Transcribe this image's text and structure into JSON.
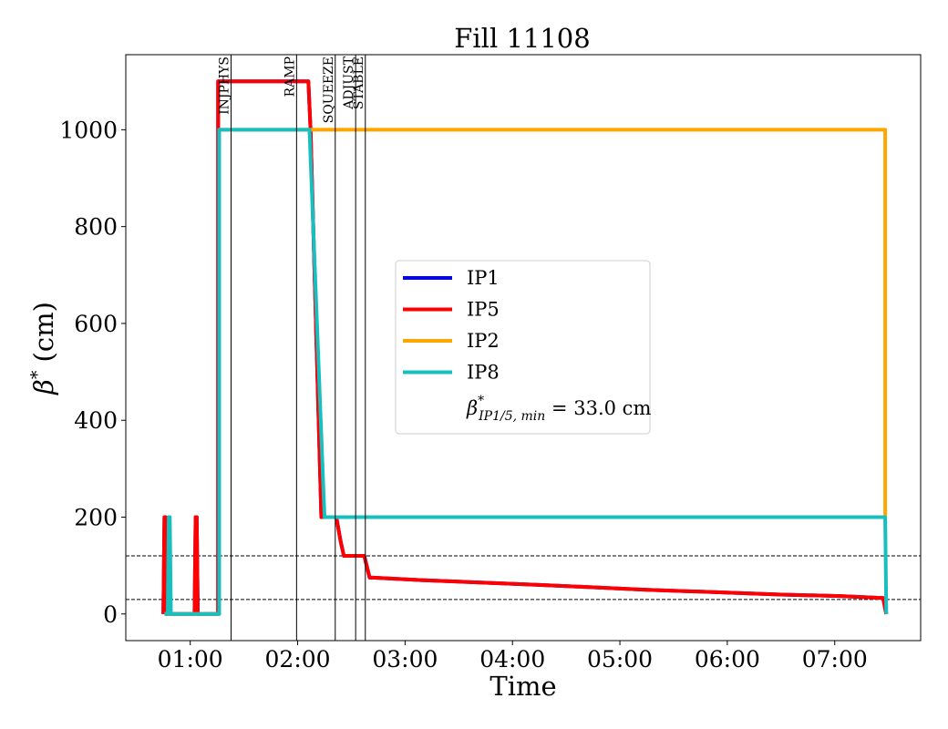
{
  "chart_data": {
    "type": "line",
    "title": "Fill 11108",
    "xlabel": "Time",
    "ylabel_symbol": "β",
    "ylabel_sup": "*",
    "ylabel_unit": " (cm)",
    "x_unit": "hours",
    "xlim": [
      0.4,
      7.8
    ],
    "ylim": [
      -55,
      1155
    ],
    "x_ticks": [
      {
        "value": 1,
        "label": "01:00"
      },
      {
        "value": 2,
        "label": "02:00"
      },
      {
        "value": 3,
        "label": "03:00"
      },
      {
        "value": 4,
        "label": "04:00"
      },
      {
        "value": 5,
        "label": "05:00"
      },
      {
        "value": 6,
        "label": "06:00"
      },
      {
        "value": 7,
        "label": "07:00"
      }
    ],
    "y_ticks": [
      0,
      200,
      400,
      600,
      800,
      1000
    ],
    "grid": false,
    "legend_position": "center",
    "reference_lines": [
      {
        "y": 120,
        "style": "dashed"
      },
      {
        "y": 30,
        "style": "dashed"
      }
    ],
    "phases": [
      {
        "label": "INJPHYS",
        "x": 1.38
      },
      {
        "label": "RAMP",
        "x": 1.99
      },
      {
        "label": "SQUEEZE",
        "x": 2.35
      },
      {
        "label": "ADJUST",
        "x": 2.54
      },
      {
        "label": "STABLE",
        "x": 2.63
      }
    ],
    "series": [
      {
        "name": "IP1",
        "color": "#0000ff",
        "x": [
          0.75,
          0.76,
          0.77,
          0.78,
          1.04,
          1.05,
          1.06,
          1.07,
          1.26,
          1.26,
          2.1,
          2.12,
          2.22,
          2.23,
          2.36,
          2.4,
          2.43,
          2.62,
          2.67,
          2.7,
          3.15,
          3.7,
          4.25,
          4.75,
          5.25,
          5.9,
          6.5,
          7.05,
          7.45,
          7.48
        ],
        "y": [
          0,
          200,
          200,
          0,
          0,
          200,
          200,
          0,
          0,
          1100,
          1100,
          1000,
          200,
          200,
          200,
          150,
          120,
          120,
          75,
          75,
          70,
          65,
          60,
          55,
          50,
          45,
          40,
          37,
          33,
          0
        ]
      },
      {
        "name": "IP5",
        "color": "#ff0000",
        "x": [
          0.75,
          0.76,
          0.77,
          0.78,
          1.04,
          1.05,
          1.06,
          1.07,
          1.26,
          1.26,
          2.1,
          2.12,
          2.22,
          2.23,
          2.36,
          2.4,
          2.43,
          2.62,
          2.67,
          2.7,
          3.15,
          3.7,
          4.25,
          4.75,
          5.25,
          5.9,
          6.5,
          7.05,
          7.45,
          7.48
        ],
        "y": [
          0,
          200,
          200,
          0,
          0,
          200,
          200,
          0,
          0,
          1100,
          1100,
          1000,
          200,
          200,
          200,
          150,
          120,
          120,
          75,
          75,
          70,
          65,
          60,
          55,
          50,
          45,
          40,
          37,
          33,
          0
        ]
      },
      {
        "name": "IP2",
        "color": "#ffa500",
        "x": [
          0.76,
          1.27,
          1.27,
          7.47,
          7.47
        ],
        "y": [
          0,
          0,
          1000,
          1000,
          200
        ]
      },
      {
        "name": "IP8",
        "color": "#17bfbf",
        "x": [
          0.76,
          0.79,
          0.8,
          0.81,
          0.82,
          1.27,
          1.27,
          2.11,
          2.25,
          7.47,
          7.48
        ],
        "y": [
          0,
          0,
          200,
          200,
          0,
          0,
          1000,
          1000,
          200,
          200,
          0
        ]
      }
    ],
    "legend_note": {
      "symbol": "β",
      "sup": "*",
      "sub": "IP1/5, min",
      "value_text": " = 33.0 cm"
    }
  }
}
